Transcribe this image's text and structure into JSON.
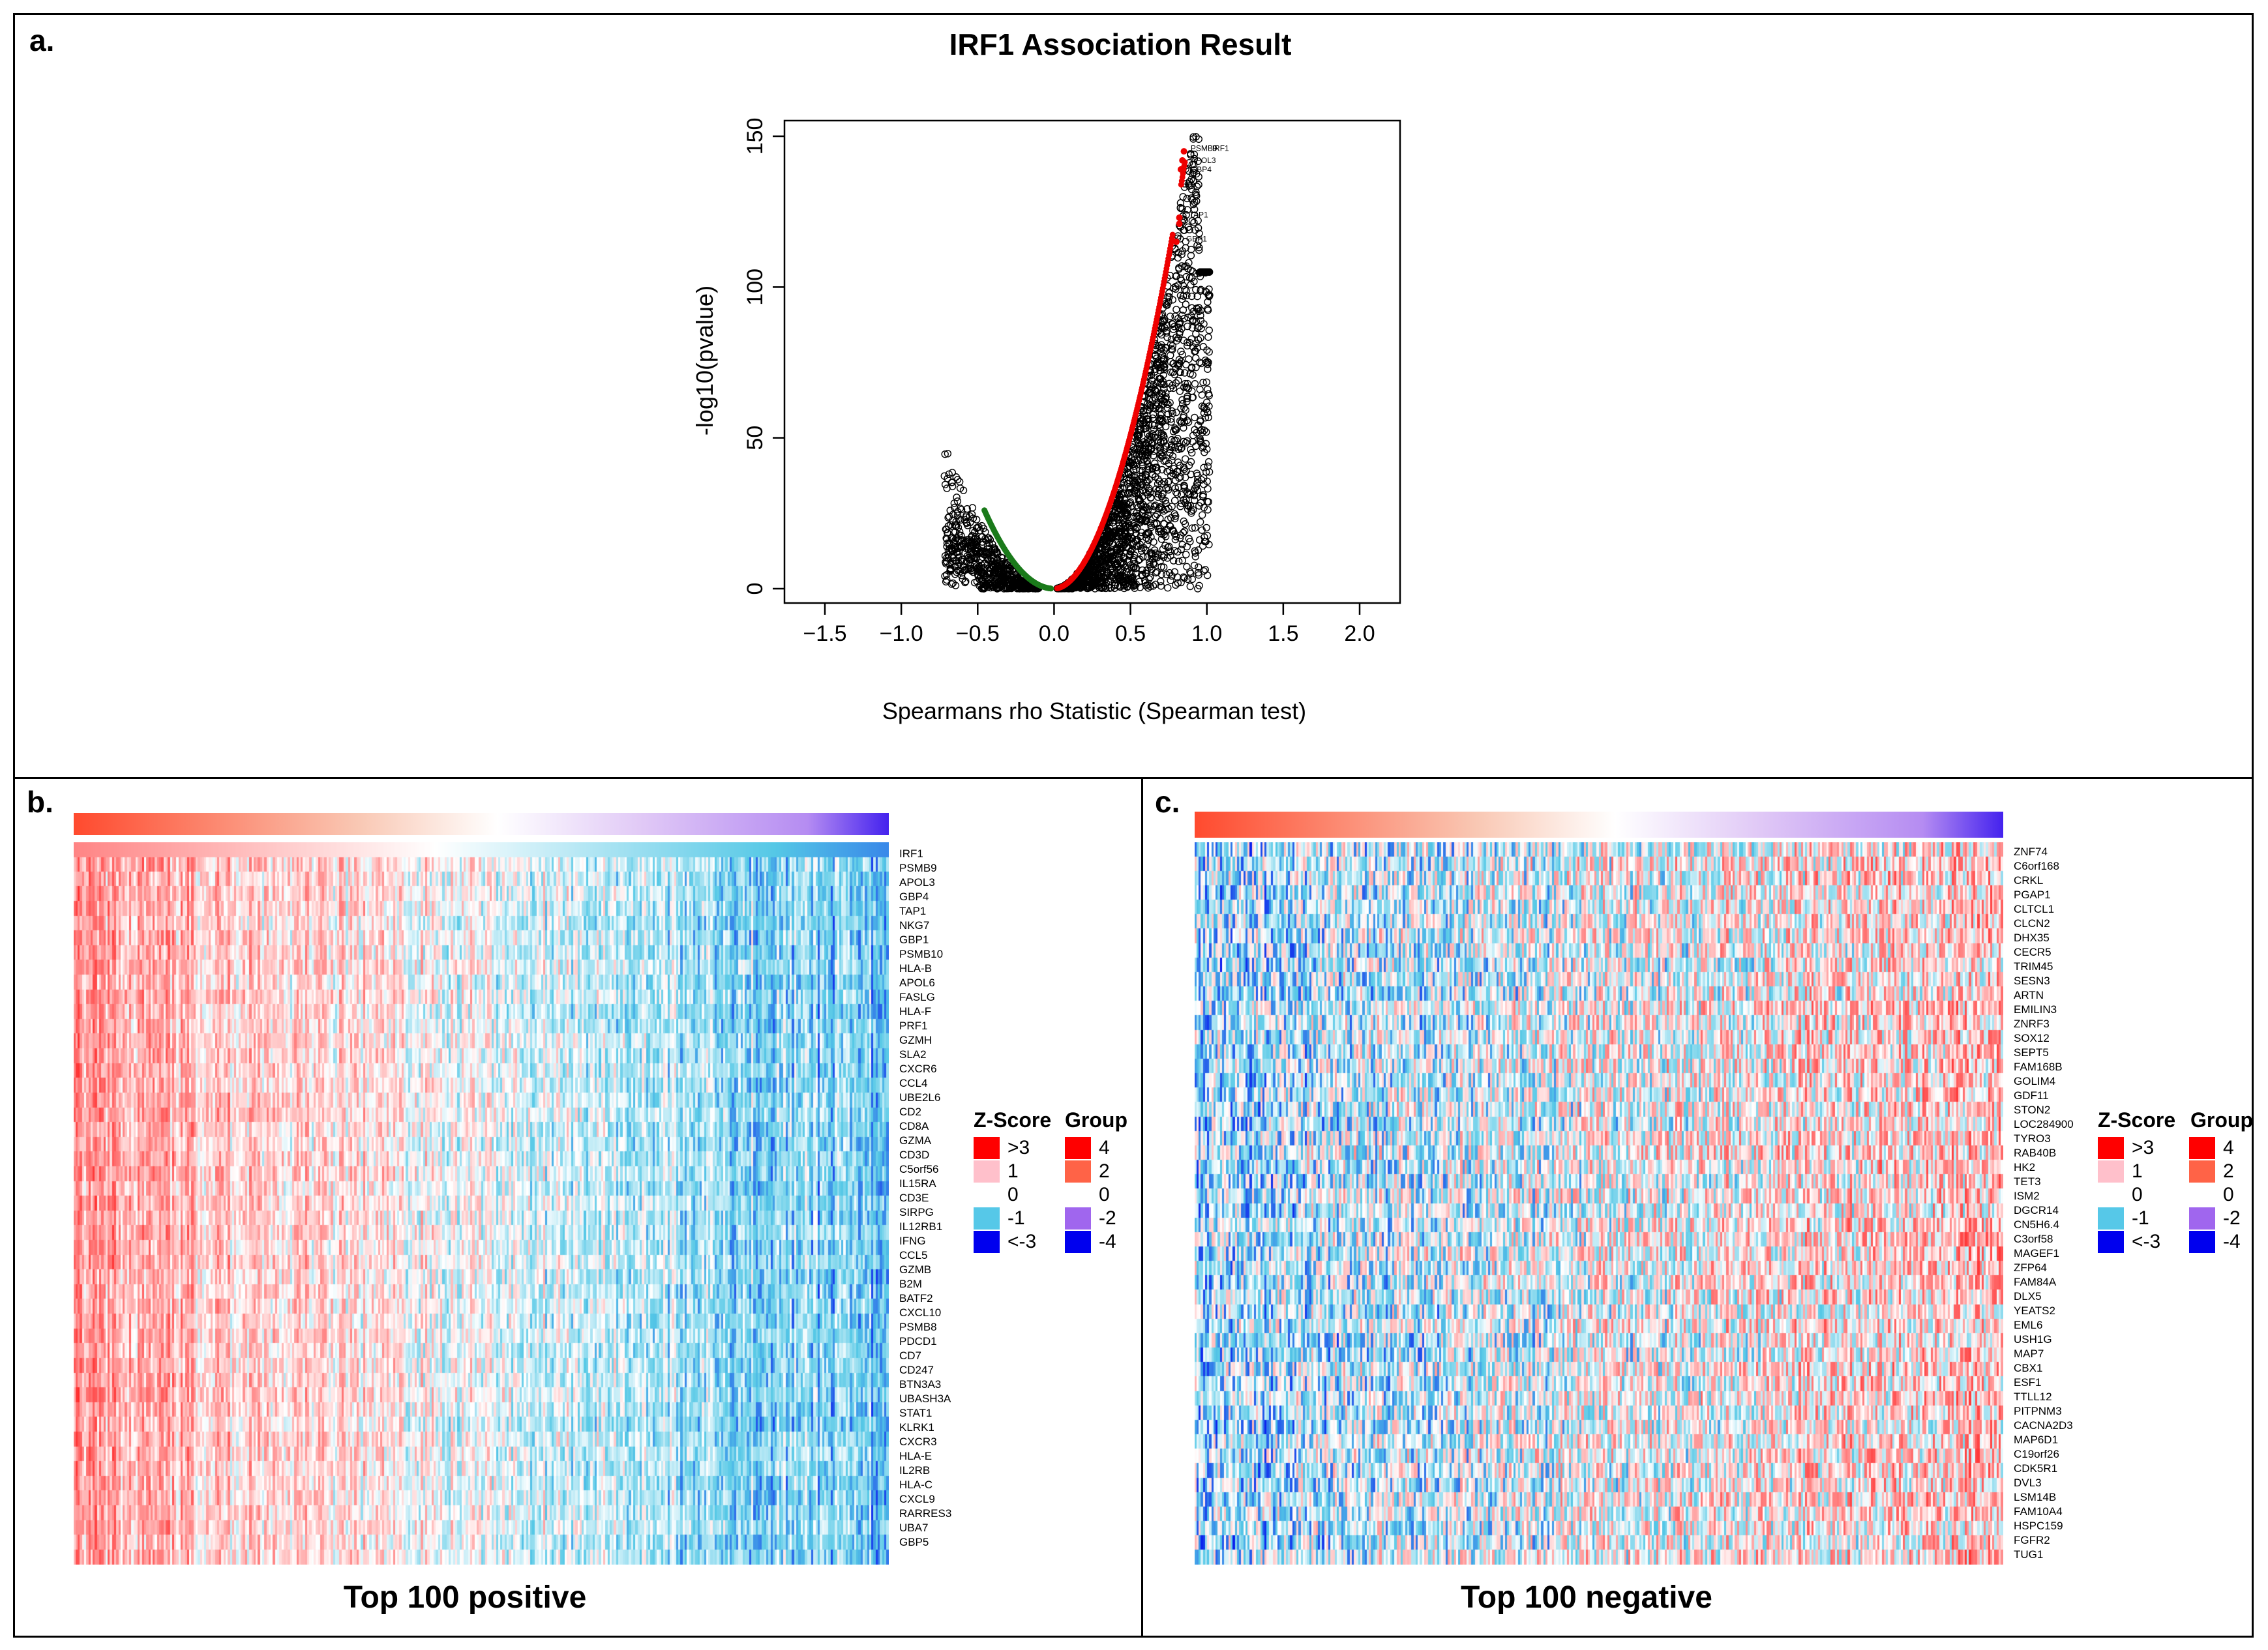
{
  "panel_a": {
    "letter": "a.",
    "title": "IRF1 Association Result",
    "xlabel": "Spearmans rho Statistic (Spearman test)",
    "ylabel": "-log10(pvalue)",
    "x_ticks": [
      "−1.5",
      "−1.0",
      "−0.5",
      "0.0",
      "0.5",
      "1.0",
      "1.5",
      "2.0"
    ],
    "y_ticks": [
      "0",
      "50",
      "100",
      "150"
    ]
  },
  "panel_b": {
    "letter": "b.",
    "caption": "Top 100 positive",
    "genes": [
      "IRF1",
      "PSMB9",
      "APOL3",
      "GBP4",
      "TAP1",
      "NKG7",
      "GBP1",
      "PSMB10",
      "HLA-B",
      "APOL6",
      "FASLG",
      "HLA-F",
      "PRF1",
      "GZMH",
      "SLA2",
      "CXCR6",
      "CCL4",
      "UBE2L6",
      "CD2",
      "CD8A",
      "GZMA",
      "CD3D",
      "C5orf56",
      "IL15RA",
      "CD3E",
      "SIRPG",
      "IL12RB1",
      "IFNG",
      "CCL5",
      "GZMB",
      "B2M",
      "BATF2",
      "CXCL10",
      "PSMB8",
      "PDCD1",
      "CD7",
      "CD247",
      "BTN3A3",
      "UBASH3A",
      "STAT1",
      "KLRK1",
      "CXCR3",
      "HLA-E",
      "IL2RB",
      "HLA-C",
      "CXCL9",
      "RARRES3",
      "UBA7",
      "GBP5"
    ]
  },
  "panel_c": {
    "letter": "c.",
    "caption": "Top 100 negative",
    "genes": [
      "ZNF74",
      "C6orf168",
      "CRKL",
      "PGAP1",
      "CLTCL1",
      "CLCN2",
      "DHX35",
      "CECR5",
      "TRIM45",
      "SESN3",
      "ARTN",
      "EMILIN3",
      "ZNRF3",
      "SOX12",
      "SEPT5",
      "FAM168B",
      "GOLIM4",
      "GDF11",
      "STON2",
      "LOC284900",
      "TYRO3",
      "RAB40B",
      "HK2",
      "TET3",
      "ISM2",
      "DGCR14",
      "CN5H6.4",
      "C3orf58",
      "MAGEF1",
      "ZFP64",
      "FAM84A",
      "DLX5",
      "YEATS2",
      "EML6",
      "USH1G",
      "MAP7",
      "CBX1",
      "ESF1",
      "TTLL12",
      "PITPNM3",
      "CACNA2D3",
      "MAP6D1",
      "C19orf26",
      "CDK5R1",
      "DVL3",
      "LSM14B",
      "FAM10A4",
      "HSPC159",
      "FGFR2",
      "TUG1"
    ]
  },
  "legend": {
    "zscore_title": "Z-Score",
    "zscore_items": [
      {
        "label": ">3",
        "color": "#ff0000"
      },
      {
        "label": "1",
        "color": "#ffc0cb"
      },
      {
        "label": "0",
        "color": "#ffffff"
      },
      {
        "label": "-1",
        "color": "#56c8e8"
      },
      {
        "label": "<-3",
        "color": "#0000ee"
      }
    ],
    "group_title": "Group",
    "group_items": [
      {
        "label": "4",
        "color": "#ff0000"
      },
      {
        "label": "2",
        "color": "#ff6347"
      },
      {
        "label": "0",
        "color": "#ffffff"
      },
      {
        "label": "-2",
        "color": "#a066ee"
      },
      {
        "label": "-4",
        "color": "#0000ee"
      }
    ]
  },
  "chart_data": [
    {
      "type": "scatter",
      "title": "IRF1 Association Result",
      "xlabel": "Spearmans rho Statistic (Spearman test)",
      "ylabel": "-log10(pvalue)",
      "xlim": [
        -1.5,
        2.0
      ],
      "ylim": [
        0,
        150
      ],
      "grid": false,
      "series": [
        {
          "color": "#ee0000",
          "points": [
            [
              0.85,
              145
            ],
            [
              0.84,
              142
            ],
            [
              0.83,
              139
            ],
            [
              0.82,
              123
            ],
            [
              0.8,
              115
            ],
            [
              0.78,
              108
            ],
            [
              0.76,
              100
            ],
            [
              0.73,
              90
            ],
            [
              0.7,
              80
            ],
            [
              0.66,
              70
            ],
            [
              0.62,
              60
            ],
            [
              0.57,
              50
            ],
            [
              0.52,
              40
            ],
            [
              0.46,
              30
            ],
            [
              0.38,
              20
            ],
            [
              0.3,
              12
            ],
            [
              0.2,
              6
            ],
            [
              0.1,
              2
            ],
            [
              0.05,
              1
            ]
          ]
        },
        {
          "color": "#1a7a1a",
          "points": [
            [
              -0.45,
              26
            ],
            [
              -0.4,
              21
            ],
            [
              -0.35,
              16
            ],
            [
              -0.3,
              12
            ],
            [
              -0.25,
              8
            ],
            [
              -0.2,
              5
            ],
            [
              -0.15,
              3
            ],
            [
              -0.1,
              1.5
            ],
            [
              -0.05,
              0.5
            ]
          ]
        },
        {
          "color": "#000000",
          "points": [
            [
              -0.6,
              15
            ],
            [
              -0.65,
              10
            ],
            [
              -0.55,
              5
            ],
            [
              -0.7,
              20
            ],
            [
              0.7,
              20
            ],
            [
              0.8,
              40
            ],
            [
              0.9,
              60
            ],
            [
              0.85,
              80
            ],
            [
              0.95,
              100
            ],
            [
              0.6,
              10
            ],
            [
              0.5,
              3
            ],
            [
              1.0,
              100
            ],
            [
              0.9,
              20
            ]
          ]
        }
      ],
      "point_labels": [
        {
          "text": "PSMB9",
          "x": 0.86,
          "y": 146
        },
        {
          "text": "IRF1",
          "x": 1.0,
          "y": 146
        },
        {
          "text": "APOL3",
          "x": 0.86,
          "y": 142
        },
        {
          "text": "GBP4",
          "x": 0.86,
          "y": 139
        },
        {
          "text": "TAP1",
          "x": 0.85,
          "y": 124
        },
        {
          "text": "GBP1",
          "x": 0.83,
          "y": 116
        }
      ]
    },
    {
      "type": "heatmap",
      "caption": "Top 100 positive",
      "rows": 49,
      "row_labels_ref": "panel_b.genes",
      "pattern": "columns ordered by IRF1 group: red (z>0) on the left fading to blue (z<0) on the right",
      "zlim": [
        -3,
        3
      ]
    },
    {
      "type": "heatmap",
      "caption": "Top 100 negative",
      "rows": 50,
      "row_labels_ref": "panel_c.genes",
      "pattern": "columns ordered by IRF1 group: blue (z<0) on the left shifting to red (z>0) on the right",
      "zlim": [
        -3,
        3
      ]
    }
  ]
}
